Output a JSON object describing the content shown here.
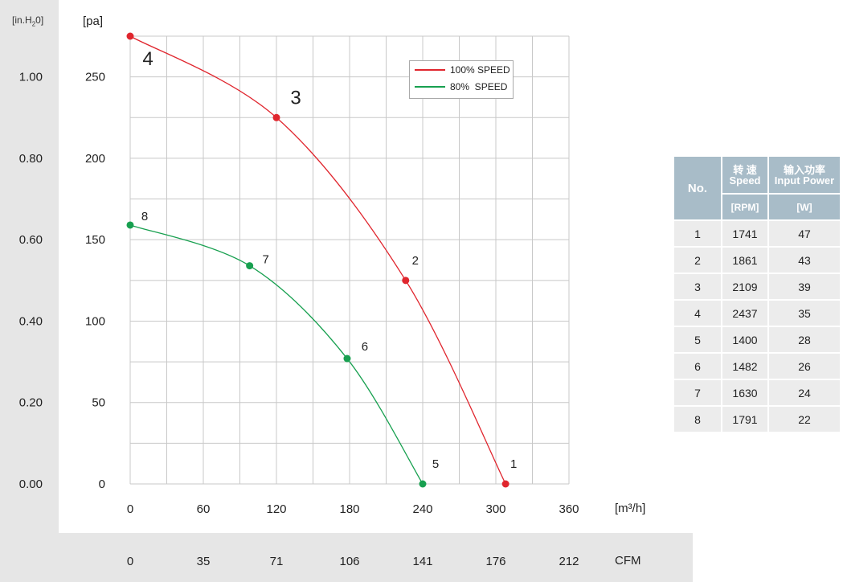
{
  "colors": {
    "series_100": "#e0262e",
    "series_80": "#18a050",
    "table_header": "#a8bcc8"
  },
  "chart_data": {
    "type": "line",
    "xlabel": "[m³/h]",
    "ylabel": "[pa]",
    "secondary_y_label": "[in.H2O]",
    "secondary_x_label": "CFM",
    "xlim": [
      0,
      360
    ],
    "ylim": [
      0,
      275
    ],
    "x_ticks": [
      "0",
      "60",
      "120",
      "180",
      "240",
      "300",
      "360"
    ],
    "y_ticks": [
      "0",
      "50",
      "100",
      "150",
      "200",
      "250"
    ],
    "y2_ticks": [
      "0.00",
      "0.20",
      "0.40",
      "0.60",
      "0.80",
      "1.00"
    ],
    "x2_ticks": [
      "0",
      "35",
      "71",
      "106",
      "141",
      "176",
      "212"
    ],
    "grid": true,
    "legend_position": "top-right",
    "series": [
      {
        "name": "100% SPEED",
        "color": "#e0262e",
        "points": [
          {
            "x": 0,
            "y": 275,
            "label": "4"
          },
          {
            "x": 120,
            "y": 225,
            "label": "3"
          },
          {
            "x": 226,
            "y": 125,
            "label": "2"
          },
          {
            "x": 308,
            "y": 0,
            "label": "1"
          }
        ]
      },
      {
        "name": "80%  SPEED",
        "color": "#18a050",
        "points": [
          {
            "x": 0,
            "y": 159,
            "label": "8"
          },
          {
            "x": 98,
            "y": 134,
            "label": "7"
          },
          {
            "x": 178,
            "y": 77,
            "label": "6"
          },
          {
            "x": 240,
            "y": 0,
            "label": "5"
          }
        ]
      }
    ]
  },
  "axis_units": {
    "in_h2o": "[in.H",
    "in_h2o_sub": "2",
    "in_h2o_end": "0]"
  },
  "table": {
    "col_no": "No.",
    "col_speed_cn": "转 速",
    "col_speed_en": "Speed",
    "col_power_cn": "输入功率",
    "col_power_en": "Input Power",
    "unit_speed": "[RPM]",
    "unit_power": "[W]",
    "rows": [
      [
        "1",
        "1741",
        "47"
      ],
      [
        "2",
        "1861",
        "43"
      ],
      [
        "3",
        "2109",
        "39"
      ],
      [
        "4",
        "2437",
        "35"
      ],
      [
        "5",
        "1400",
        "28"
      ],
      [
        "6",
        "1482",
        "26"
      ],
      [
        "7",
        "1630",
        "24"
      ],
      [
        "8",
        "1791",
        "22"
      ]
    ]
  }
}
